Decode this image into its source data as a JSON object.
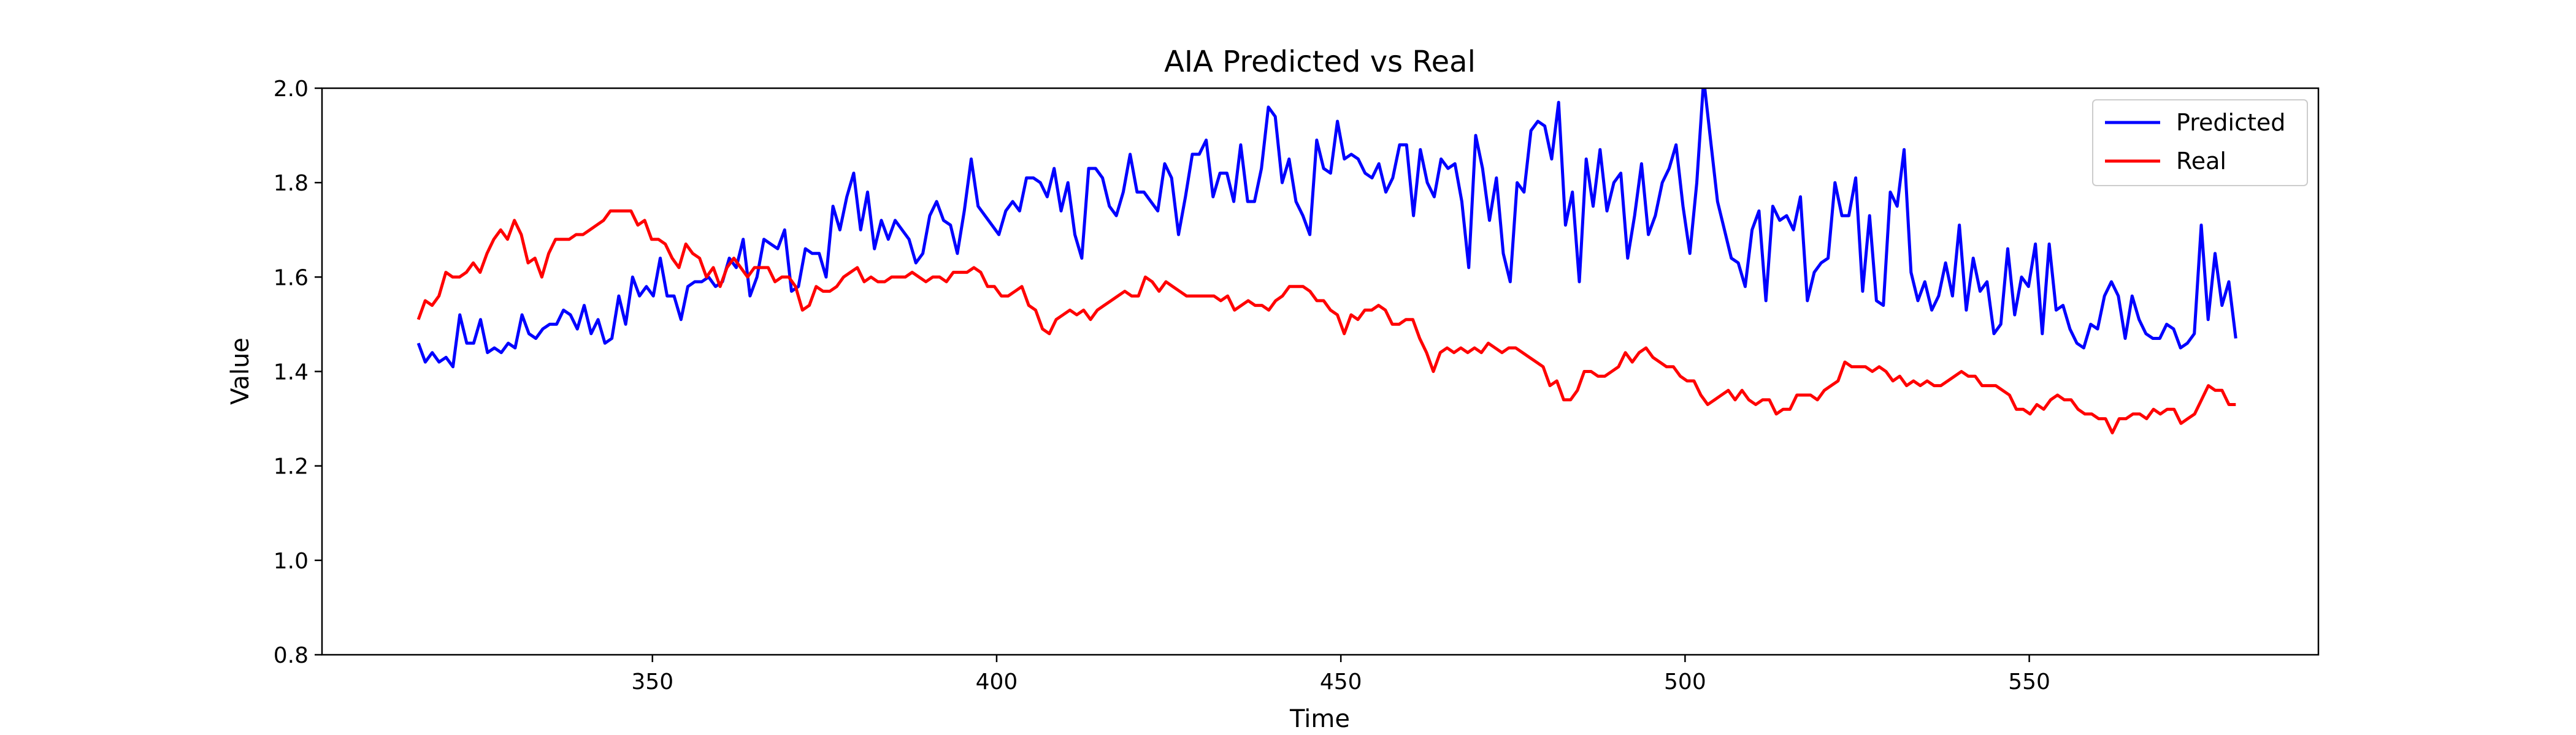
{
  "chart_data": {
    "type": "line",
    "title": "AIA Predicted vs Real",
    "xlabel": "Time",
    "ylabel": "Value",
    "xlim": [
      302,
      592
    ],
    "ylim": [
      0.8,
      2.0
    ],
    "xticks": [
      350,
      400,
      450,
      500,
      550
    ],
    "yticks": [
      0.8,
      1.0,
      1.2,
      1.4,
      1.6,
      1.8,
      2.0
    ],
    "xtick_labels": [
      "350",
      "400",
      "450",
      "500",
      "550"
    ],
    "ytick_labels": [
      "0.8",
      "1.0",
      "1.2",
      "1.4",
      "1.6",
      "1.8",
      "2.0"
    ],
    "grid": false,
    "legend_position": "top-right",
    "x_start": 316,
    "x_end": 580,
    "series": [
      {
        "name": "Predicted",
        "color": "#0000ff",
        "values": [
          1.46,
          1.42,
          1.44,
          1.42,
          1.43,
          1.41,
          1.52,
          1.46,
          1.46,
          1.51,
          1.44,
          1.45,
          1.44,
          1.46,
          1.45,
          1.52,
          1.48,
          1.47,
          1.49,
          1.5,
          1.5,
          1.53,
          1.52,
          1.49,
          1.54,
          1.48,
          1.51,
          1.46,
          1.47,
          1.56,
          1.5,
          1.6,
          1.56,
          1.58,
          1.56,
          1.64,
          1.56,
          1.56,
          1.51,
          1.58,
          1.59,
          1.59,
          1.6,
          1.58,
          1.59,
          1.64,
          1.62,
          1.68,
          1.56,
          1.6,
          1.68,
          1.67,
          1.66,
          1.7,
          1.57,
          1.58,
          1.66,
          1.65,
          1.65,
          1.6,
          1.75,
          1.7,
          1.77,
          1.82,
          1.7,
          1.78,
          1.66,
          1.72,
          1.68,
          1.72,
          1.7,
          1.68,
          1.63,
          1.65,
          1.73,
          1.76,
          1.72,
          1.71,
          1.65,
          1.74,
          1.85,
          1.75,
          1.73,
          1.71,
          1.69,
          1.74,
          1.76,
          1.74,
          1.81,
          1.81,
          1.8,
          1.77,
          1.83,
          1.74,
          1.8,
          1.69,
          1.64,
          1.83,
          1.83,
          1.81,
          1.75,
          1.73,
          1.78,
          1.86,
          1.78,
          1.78,
          1.76,
          1.74,
          1.84,
          1.81,
          1.69,
          1.77,
          1.86,
          1.86,
          1.89,
          1.77,
          1.82,
          1.82,
          1.76,
          1.88,
          1.76,
          1.76,
          1.83,
          1.96,
          1.94,
          1.8,
          1.85,
          1.76,
          1.73,
          1.69,
          1.89,
          1.83,
          1.82,
          1.93,
          1.85,
          1.86,
          1.85,
          1.82,
          1.81,
          1.84,
          1.78,
          1.81,
          1.88,
          1.88,
          1.73,
          1.87,
          1.8,
          1.77,
          1.85,
          1.83,
          1.84,
          1.76,
          1.62,
          1.9,
          1.83,
          1.72,
          1.81,
          1.65,
          1.59,
          1.8,
          1.78,
          1.91,
          1.93,
          1.92,
          1.85,
          1.97,
          1.71,
          1.78,
          1.59,
          1.85,
          1.75,
          1.87,
          1.74,
          1.8,
          1.82,
          1.64,
          1.73,
          1.84,
          1.69,
          1.73,
          1.8,
          1.83,
          1.88,
          1.75,
          1.65,
          1.8,
          2.02,
          1.89,
          1.76,
          1.7,
          1.64,
          1.63,
          1.58,
          1.7,
          1.74,
          1.55,
          1.75,
          1.72,
          1.73,
          1.7,
          1.77,
          1.55,
          1.61,
          1.63,
          1.64,
          1.8,
          1.73,
          1.73,
          1.81,
          1.57,
          1.73,
          1.55,
          1.54,
          1.78,
          1.75,
          1.87,
          1.61,
          1.55,
          1.59,
          1.53,
          1.56,
          1.63,
          1.56,
          1.71,
          1.53,
          1.64,
          1.57,
          1.59,
          1.48,
          1.5,
          1.66,
          1.52,
          1.6,
          1.58,
          1.67,
          1.48,
          1.67,
          1.53,
          1.54,
          1.49,
          1.46,
          1.45,
          1.5,
          1.49,
          1.56,
          1.59,
          1.56,
          1.47,
          1.56,
          1.51,
          1.48,
          1.47,
          1.47,
          1.5,
          1.49,
          1.45,
          1.46,
          1.48,
          1.71,
          1.51,
          1.65,
          1.54,
          1.59,
          1.47
        ]
      },
      {
        "name": "Real",
        "color": "#ff0000",
        "values": [
          1.51,
          1.55,
          1.54,
          1.56,
          1.61,
          1.6,
          1.6,
          1.61,
          1.63,
          1.61,
          1.65,
          1.68,
          1.7,
          1.68,
          1.72,
          1.69,
          1.63,
          1.64,
          1.6,
          1.65,
          1.68,
          1.68,
          1.68,
          1.69,
          1.69,
          1.7,
          1.71,
          1.72,
          1.74,
          1.74,
          1.74,
          1.74,
          1.71,
          1.72,
          1.68,
          1.68,
          1.67,
          1.64,
          1.62,
          1.67,
          1.65,
          1.64,
          1.6,
          1.62,
          1.58,
          1.62,
          1.64,
          1.62,
          1.6,
          1.62,
          1.62,
          1.62,
          1.59,
          1.6,
          1.6,
          1.58,
          1.53,
          1.54,
          1.58,
          1.57,
          1.57,
          1.58,
          1.6,
          1.61,
          1.62,
          1.59,
          1.6,
          1.59,
          1.59,
          1.6,
          1.6,
          1.6,
          1.61,
          1.6,
          1.59,
          1.6,
          1.6,
          1.59,
          1.61,
          1.61,
          1.61,
          1.62,
          1.61,
          1.58,
          1.58,
          1.56,
          1.56,
          1.57,
          1.58,
          1.54,
          1.53,
          1.49,
          1.48,
          1.51,
          1.52,
          1.53,
          1.52,
          1.53,
          1.51,
          1.53,
          1.54,
          1.55,
          1.56,
          1.57,
          1.56,
          1.56,
          1.6,
          1.59,
          1.57,
          1.59,
          1.58,
          1.57,
          1.56,
          1.56,
          1.56,
          1.56,
          1.56,
          1.55,
          1.56,
          1.53,
          1.54,
          1.55,
          1.54,
          1.54,
          1.53,
          1.55,
          1.56,
          1.58,
          1.58,
          1.58,
          1.57,
          1.55,
          1.55,
          1.53,
          1.52,
          1.48,
          1.52,
          1.51,
          1.53,
          1.53,
          1.54,
          1.53,
          1.5,
          1.5,
          1.51,
          1.51,
          1.47,
          1.44,
          1.4,
          1.44,
          1.45,
          1.44,
          1.45,
          1.44,
          1.45,
          1.44,
          1.46,
          1.45,
          1.44,
          1.45,
          1.45,
          1.44,
          1.43,
          1.42,
          1.41,
          1.37,
          1.38,
          1.34,
          1.34,
          1.36,
          1.4,
          1.4,
          1.39,
          1.39,
          1.4,
          1.41,
          1.44,
          1.42,
          1.44,
          1.45,
          1.43,
          1.42,
          1.41,
          1.41,
          1.39,
          1.38,
          1.38,
          1.35,
          1.33,
          1.34,
          1.35,
          1.36,
          1.34,
          1.36,
          1.34,
          1.33,
          1.34,
          1.34,
          1.31,
          1.32,
          1.32,
          1.35,
          1.35,
          1.35,
          1.34,
          1.36,
          1.37,
          1.38,
          1.42,
          1.41,
          1.41,
          1.41,
          1.4,
          1.41,
          1.4,
          1.38,
          1.39,
          1.37,
          1.38,
          1.37,
          1.38,
          1.37,
          1.37,
          1.38,
          1.39,
          1.4,
          1.39,
          1.39,
          1.37,
          1.37,
          1.37,
          1.36,
          1.35,
          1.32,
          1.32,
          1.31,
          1.33,
          1.32,
          1.34,
          1.35,
          1.34,
          1.34,
          1.32,
          1.31,
          1.31,
          1.3,
          1.3,
          1.27,
          1.3,
          1.3,
          1.31,
          1.31,
          1.3,
          1.32,
          1.31,
          1.32,
          1.32,
          1.29,
          1.3,
          1.31,
          1.34,
          1.37,
          1.36,
          1.36,
          1.33,
          1.33
        ]
      }
    ]
  }
}
